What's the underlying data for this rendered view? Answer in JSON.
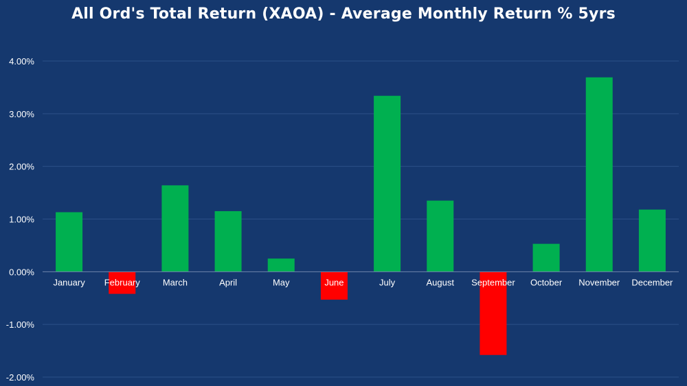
{
  "chart_data": {
    "type": "bar",
    "title": "All Ord's Total Return (XAOA) - Average Monthly Return % 5yrs",
    "xlabel": "",
    "ylabel": "",
    "categories": [
      "January",
      "February",
      "March",
      "April",
      "May",
      "June",
      "July",
      "August",
      "September",
      "October",
      "November",
      "December"
    ],
    "values": [
      1.13,
      -0.42,
      1.64,
      1.15,
      0.25,
      -0.53,
      3.34,
      1.35,
      -1.58,
      0.53,
      3.69,
      1.18
    ],
    "ylim": [
      -2,
      4
    ],
    "yticks": [
      4,
      3,
      2,
      1,
      0,
      -1,
      -2
    ],
    "ytick_labels": [
      "4.00%",
      "3.00%",
      "2.00%",
      "1.00%",
      "0.00%",
      "-1.00%",
      "-2.00%"
    ],
    "grid": true,
    "legend": "none",
    "colors": {
      "positive": "#00b050",
      "negative": "#ff0000",
      "background": "#15386e",
      "grid": "#2c5088"
    }
  }
}
